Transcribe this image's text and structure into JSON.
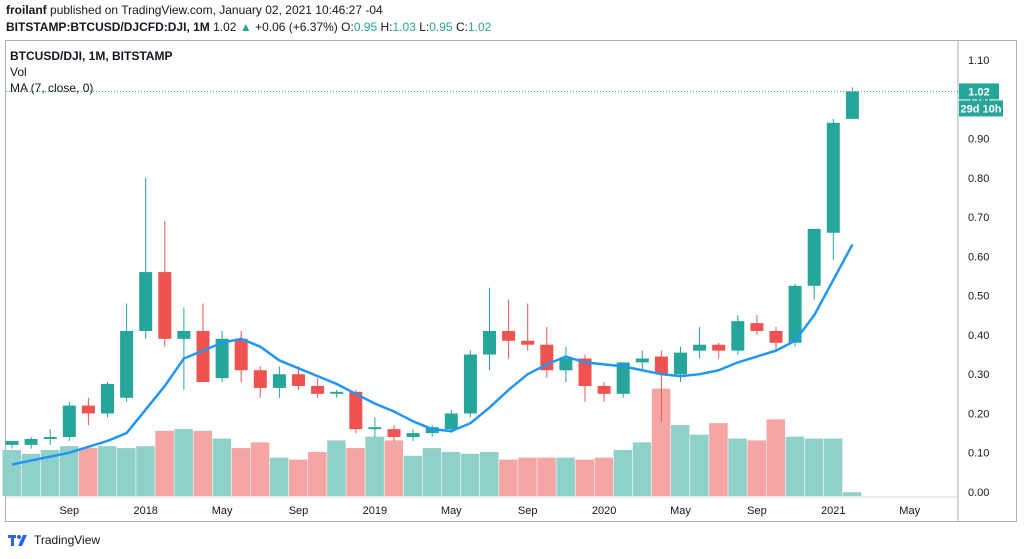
{
  "header": {
    "author": "froilanf",
    "published": "published on TradingView.com, January 02, 2021 10:46:27 -04"
  },
  "ohlc_line": {
    "symbol": "BITSTAMP:BTCUSD/DJCFD:DJI, 1M",
    "last": "1.02",
    "arrow": "▲",
    "change": "+0.06 (+6.37%)",
    "o_label": "O:",
    "o": "0.95",
    "h_label": "H:",
    "h": "1.03",
    "l_label": "L:",
    "l": "0.95",
    "c_label": "C:",
    "c": "1.02"
  },
  "legend": {
    "title": "BTCUSD/DJI, 1M, BITSTAMP",
    "vol": "Vol",
    "ma": "MA (7, close, 0)"
  },
  "price_tag": {
    "price": "1.02",
    "countdown": "29d 10h"
  },
  "footer": {
    "brand": "TradingView"
  },
  "colors": {
    "up": "#26a69a",
    "down": "#ef5350",
    "ma": "#2196f3",
    "vol_up": "#8fd1c8",
    "vol_down": "#f4a5a4"
  },
  "chart_data": {
    "type": "candlestick",
    "ylim": [
      0,
      1.13
    ],
    "y_ticks": [
      "0.00",
      "0.10",
      "0.20",
      "0.30",
      "0.40",
      "0.50",
      "0.60",
      "0.70",
      "0.80",
      "0.90",
      "1.00",
      "1.10"
    ],
    "x_ticks": [
      {
        "label": "Sep",
        "index": 3
      },
      {
        "label": "2018",
        "index": 7
      },
      {
        "label": "May",
        "index": 11
      },
      {
        "label": "Sep",
        "index": 15
      },
      {
        "label": "2019",
        "index": 19
      },
      {
        "label": "May",
        "index": 23
      },
      {
        "label": "Sep",
        "index": 27
      },
      {
        "label": "2020",
        "index": 31
      },
      {
        "label": "May",
        "index": 35
      },
      {
        "label": "Sep",
        "index": 39
      },
      {
        "label": "2021",
        "index": 43
      },
      {
        "label": "May",
        "index": 47
      }
    ],
    "candles": [
      {
        "o": 0.12,
        "h": 0.13,
        "l": 0.11,
        "c": 0.13,
        "v": 0.12
      },
      {
        "o": 0.12,
        "h": 0.14,
        "l": 0.11,
        "c": 0.135,
        "v": 0.11
      },
      {
        "o": 0.135,
        "h": 0.16,
        "l": 0.12,
        "c": 0.14,
        "v": 0.12
      },
      {
        "o": 0.14,
        "h": 0.23,
        "l": 0.13,
        "c": 0.22,
        "v": 0.13
      },
      {
        "o": 0.22,
        "h": 0.24,
        "l": 0.17,
        "c": 0.2,
        "v": 0.125
      },
      {
        "o": 0.2,
        "h": 0.28,
        "l": 0.19,
        "c": 0.275,
        "v": 0.13
      },
      {
        "o": 0.24,
        "h": 0.48,
        "l": 0.23,
        "c": 0.41,
        "v": 0.125
      },
      {
        "o": 0.41,
        "h": 0.8,
        "l": 0.39,
        "c": 0.56,
        "v": 0.13
      },
      {
        "o": 0.56,
        "h": 0.69,
        "l": 0.37,
        "c": 0.39,
        "v": 0.17
      },
      {
        "o": 0.39,
        "h": 0.47,
        "l": 0.26,
        "c": 0.41,
        "v": 0.175
      },
      {
        "o": 0.41,
        "h": 0.48,
        "l": 0.29,
        "c": 0.28,
        "v": 0.17
      },
      {
        "o": 0.29,
        "h": 0.41,
        "l": 0.28,
        "c": 0.39,
        "v": 0.15
      },
      {
        "o": 0.39,
        "h": 0.41,
        "l": 0.28,
        "c": 0.31,
        "v": 0.125
      },
      {
        "o": 0.31,
        "h": 0.32,
        "l": 0.24,
        "c": 0.265,
        "v": 0.14
      },
      {
        "o": 0.265,
        "h": 0.32,
        "l": 0.24,
        "c": 0.3,
        "v": 0.1
      },
      {
        "o": 0.3,
        "h": 0.32,
        "l": 0.26,
        "c": 0.27,
        "v": 0.095
      },
      {
        "o": 0.27,
        "h": 0.29,
        "l": 0.24,
        "c": 0.25,
        "v": 0.115
      },
      {
        "o": 0.25,
        "h": 0.26,
        "l": 0.24,
        "c": 0.255,
        "v": 0.145
      },
      {
        "o": 0.255,
        "h": 0.26,
        "l": 0.15,
        "c": 0.16,
        "v": 0.125
      },
      {
        "o": 0.16,
        "h": 0.19,
        "l": 0.14,
        "c": 0.165,
        "v": 0.155
      },
      {
        "o": 0.16,
        "h": 0.17,
        "l": 0.13,
        "c": 0.14,
        "v": 0.145
      },
      {
        "o": 0.14,
        "h": 0.16,
        "l": 0.13,
        "c": 0.15,
        "v": 0.105
      },
      {
        "o": 0.15,
        "h": 0.17,
        "l": 0.14,
        "c": 0.165,
        "v": 0.125
      },
      {
        "o": 0.16,
        "h": 0.21,
        "l": 0.15,
        "c": 0.2,
        "v": 0.115
      },
      {
        "o": 0.2,
        "h": 0.36,
        "l": 0.19,
        "c": 0.35,
        "v": 0.11
      },
      {
        "o": 0.35,
        "h": 0.52,
        "l": 0.31,
        "c": 0.41,
        "v": 0.115
      },
      {
        "o": 0.41,
        "h": 0.49,
        "l": 0.34,
        "c": 0.385,
        "v": 0.095
      },
      {
        "o": 0.385,
        "h": 0.48,
        "l": 0.36,
        "c": 0.375,
        "v": 0.1
      },
      {
        "o": 0.375,
        "h": 0.42,
        "l": 0.29,
        "c": 0.31,
        "v": 0.1
      },
      {
        "o": 0.31,
        "h": 0.37,
        "l": 0.28,
        "c": 0.34,
        "v": 0.1
      },
      {
        "o": 0.34,
        "h": 0.35,
        "l": 0.23,
        "c": 0.27,
        "v": 0.095
      },
      {
        "o": 0.27,
        "h": 0.28,
        "l": 0.23,
        "c": 0.25,
        "v": 0.1
      },
      {
        "o": 0.25,
        "h": 0.33,
        "l": 0.24,
        "c": 0.33,
        "v": 0.12
      },
      {
        "o": 0.33,
        "h": 0.36,
        "l": 0.31,
        "c": 0.34,
        "v": 0.14
      },
      {
        "o": 0.345,
        "h": 0.36,
        "l": 0.18,
        "c": 0.3,
        "v": 0.28
      },
      {
        "o": 0.3,
        "h": 0.37,
        "l": 0.28,
        "c": 0.355,
        "v": 0.185
      },
      {
        "o": 0.36,
        "h": 0.42,
        "l": 0.34,
        "c": 0.375,
        "v": 0.16
      },
      {
        "o": 0.375,
        "h": 0.38,
        "l": 0.34,
        "c": 0.36,
        "v": 0.19
      },
      {
        "o": 0.36,
        "h": 0.45,
        "l": 0.35,
        "c": 0.435,
        "v": 0.15
      },
      {
        "o": 0.43,
        "h": 0.45,
        "l": 0.4,
        "c": 0.41,
        "v": 0.145
      },
      {
        "o": 0.41,
        "h": 0.42,
        "l": 0.36,
        "c": 0.38,
        "v": 0.2
      },
      {
        "o": 0.38,
        "h": 0.53,
        "l": 0.37,
        "c": 0.525,
        "v": 0.155
      },
      {
        "o": 0.525,
        "h": 0.67,
        "l": 0.49,
        "c": 0.67,
        "v": 0.15
      },
      {
        "o": 0.66,
        "h": 0.95,
        "l": 0.59,
        "c": 0.94,
        "v": 0.15
      },
      {
        "o": 0.95,
        "h": 1.03,
        "l": 0.95,
        "c": 1.02,
        "v": 0.01
      }
    ],
    "ma": [
      0.07,
      0.08,
      0.09,
      0.1,
      0.115,
      0.13,
      0.15,
      0.21,
      0.27,
      0.34,
      0.36,
      0.38,
      0.39,
      0.37,
      0.335,
      0.315,
      0.295,
      0.275,
      0.25,
      0.225,
      0.205,
      0.18,
      0.16,
      0.155,
      0.175,
      0.215,
      0.26,
      0.3,
      0.325,
      0.345,
      0.33,
      0.325,
      0.32,
      0.31,
      0.3,
      0.295,
      0.3,
      0.31,
      0.33,
      0.345,
      0.36,
      0.385,
      0.45,
      0.54,
      0.63
    ]
  }
}
